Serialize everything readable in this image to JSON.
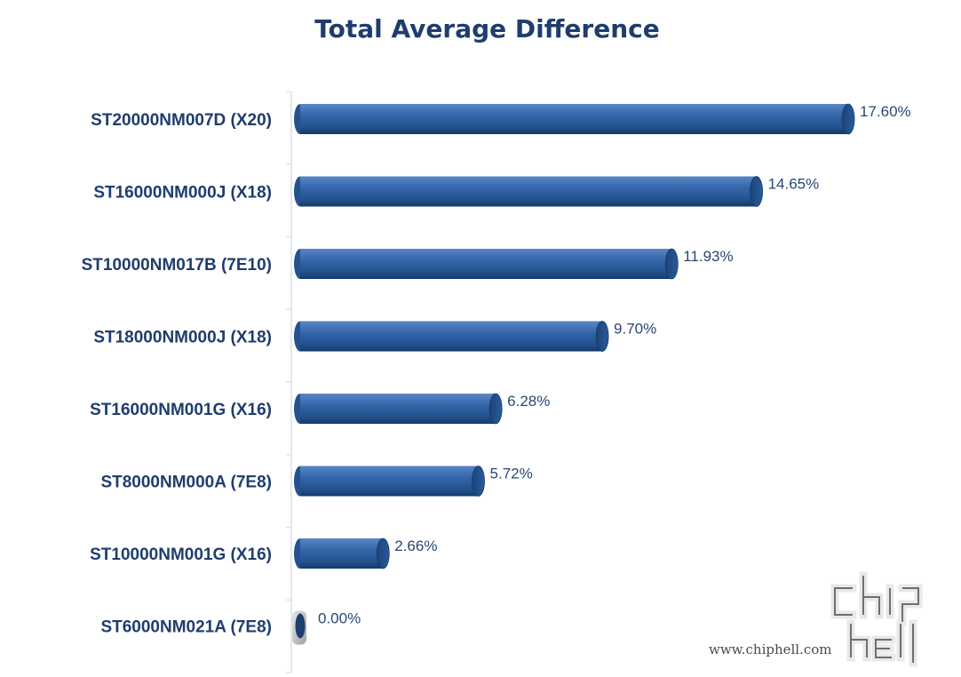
{
  "chart_data": {
    "type": "bar",
    "orientation": "horizontal",
    "title": "Total Average Difference",
    "categories": [
      "ST20000NM007D (X20)",
      "ST16000NM000J (X18)",
      "ST10000NM017B (7E10)",
      "ST18000NM000J (X18)",
      "ST16000NM001G (X16)",
      "ST8000NM000A (7E8)",
      "ST10000NM001G (X16)",
      "ST6000NM021A (7E8)"
    ],
    "values": [
      17.6,
      14.65,
      11.93,
      9.7,
      6.28,
      5.72,
      2.66,
      0.0
    ],
    "value_labels": [
      "17.60%",
      "14.65%",
      "11.93%",
      "9.70%",
      "6.28%",
      "5.72%",
      "2.66%",
      "0.00%"
    ],
    "xlim": [
      0,
      17.6
    ],
    "bar_color": "#2e5da0",
    "grid": false,
    "legend": "none"
  },
  "watermark": {
    "logo_text": "chip hell",
    "url": "www.chiphell.com"
  }
}
